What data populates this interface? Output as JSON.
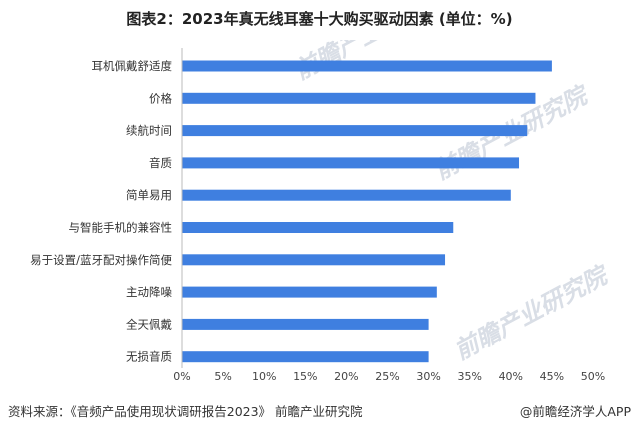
{
  "title": "图表2：2023年真无线耳塞十大购买驱动因素 (单位：%)",
  "footer": {
    "source": "资料来源：《音频产品使用现状调研报告2023》 前瞻产业研究院",
    "brand": "@前瞻经济学人APP"
  },
  "watermark": "前瞻产业研究院",
  "colors": {
    "bar": "#3f7fe0",
    "axis": "#bbbbbb"
  },
  "chart_data": {
    "type": "bar",
    "orientation": "horizontal",
    "title": "图表2：2023年真无线耳塞十大购买驱动因素 (单位：%)",
    "xlabel": "",
    "ylabel": "",
    "categories": [
      "耳机佩戴舒适度",
      "价格",
      "续航时间",
      "音质",
      "简单易用",
      "与智能手机的兼容性",
      "易于设置/蓝牙配对操作简便",
      "主动降噪",
      "全天佩戴",
      "无损音质"
    ],
    "values": [
      45,
      43,
      42,
      41,
      40,
      33,
      32,
      31,
      30,
      30
    ],
    "xlim": [
      0,
      50
    ],
    "xticks": [
      "0%",
      "5%",
      "10%",
      "15%",
      "20%",
      "25%",
      "30%",
      "35%",
      "40%",
      "45%",
      "50%"
    ],
    "grid": false,
    "legend": "none"
  }
}
